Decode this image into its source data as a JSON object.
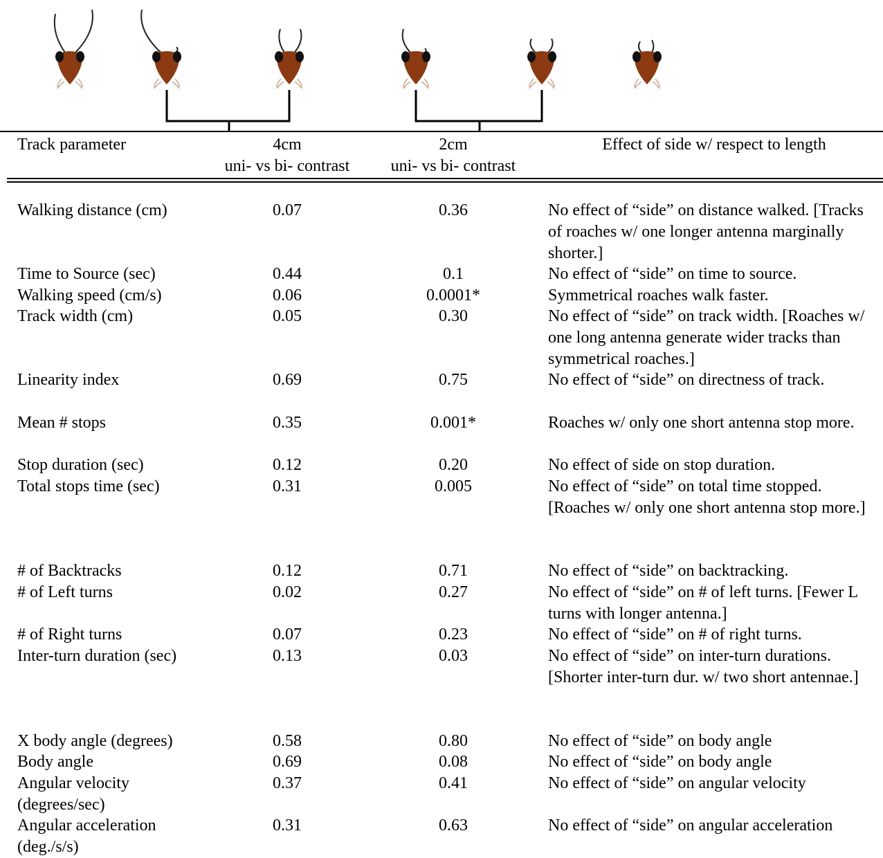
{
  "header": {
    "columns": [
      [
        "Track parameter"
      ],
      [
        "4cm",
        "uni- vs bi- contrast"
      ],
      [
        "2cm",
        "uni- vs bi- contrast"
      ],
      [
        "Effect of side w/ respect to length"
      ]
    ]
  },
  "table": {
    "rows": [
      [
        "Walking distance (cm)",
        "0.07",
        "0.36",
        "No effect of “side” on distance walked. [Tracks of roaches w/ one longer antenna marginally shorter.]"
      ],
      [
        "Time to Source (sec)",
        "0.44",
        "0.1",
        "No effect of “side” on time to source."
      ],
      [
        "Walking speed (cm/s)",
        "0.06",
        "0.0001*",
        "Symmetrical roaches walk faster."
      ],
      [
        "Track width (cm)",
        "0.05",
        "0.30",
        "No effect of “side” on track width. [Roaches w/ one long antenna generate wider tracks than symmetrical roaches.]"
      ],
      [
        "Linearity index",
        "0.69",
        "0.75",
        "No effect of “side” on directness of track."
      ],
      [
        "Mean # stops",
        "0.35",
        "0.001*",
        "Roaches w/ only one short antenna stop more."
      ],
      [
        "Stop duration (sec)",
        "0.12",
        "0.20",
        "No effect of side on stop duration."
      ],
      [
        "Total stops time (sec)",
        "0.31",
        "0.005",
        "No effect of “side” on total time stopped. [Roaches w/ only one short antenna stop more.]"
      ],
      [
        "# of Backtracks",
        "0.12",
        "0.71",
        "No effect of “side” on backtracking."
      ],
      [
        "# of Left turns",
        "0.02",
        "0.27",
        "No effect of “side” on # of left turns. [Fewer L turns with longer antenna.]"
      ],
      [
        "# of Right turns",
        "0.07",
        "0.23",
        "No effect of “side” on # of right turns."
      ],
      [
        "Inter-turn duration (sec)",
        "0.13",
        "0.03",
        "No effect of “side” on inter-turn durations. [Shorter inter-turn dur. w/ two short antennae.]"
      ],
      [
        "X body angle (degrees)",
        "0.58",
        "0.80",
        "No effect of “side” on body angle"
      ],
      [
        "Body angle",
        "0.69",
        "0.08",
        "No effect of “side” on body angle"
      ],
      [
        "Angular velocity (degrees/sec)",
        "0.37",
        "0.41",
        "No effect of “side” on angular velocity"
      ],
      [
        "Angular acceleration (deg./s/s)",
        "0.31",
        "0.63",
        "No effect of “side” on angular acceleration"
      ]
    ]
  }
}
